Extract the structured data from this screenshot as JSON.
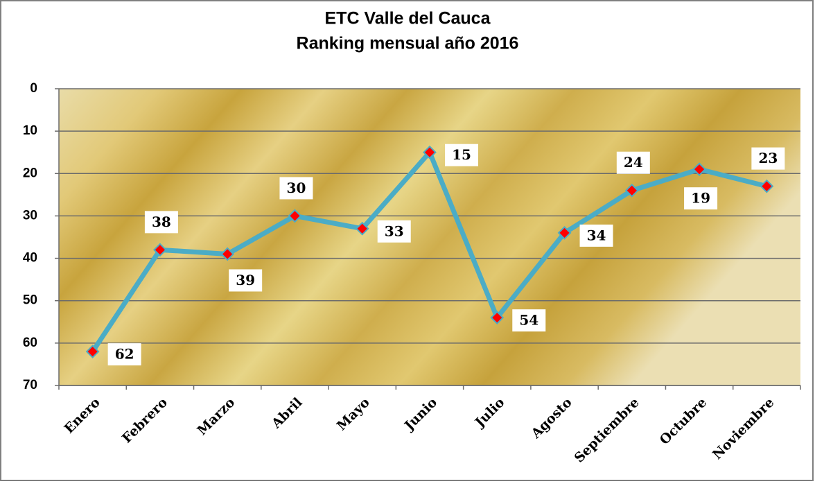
{
  "chart_data": {
    "type": "line",
    "title": "ETC Valle del Cauca",
    "subtitle": "Ranking mensual año 2016",
    "categories": [
      "Enero",
      "Febrero",
      "Marzo",
      "Abril",
      "Mayo",
      "Junio",
      "Julio",
      "Agosto",
      "Septiembre",
      "Octubre",
      "Noviembre"
    ],
    "series": [
      {
        "color": "#4bacc6",
        "marker_color": "#ff0000",
        "values": [
          62,
          38,
          39,
          30,
          33,
          15,
          54,
          34,
          24,
          19,
          23
        ]
      }
    ],
    "ylim": [
      0,
      70
    ],
    "yticks": [
      0,
      10,
      20,
      30,
      40,
      50,
      60,
      70
    ],
    "y_inverted": true,
    "grid": true
  }
}
